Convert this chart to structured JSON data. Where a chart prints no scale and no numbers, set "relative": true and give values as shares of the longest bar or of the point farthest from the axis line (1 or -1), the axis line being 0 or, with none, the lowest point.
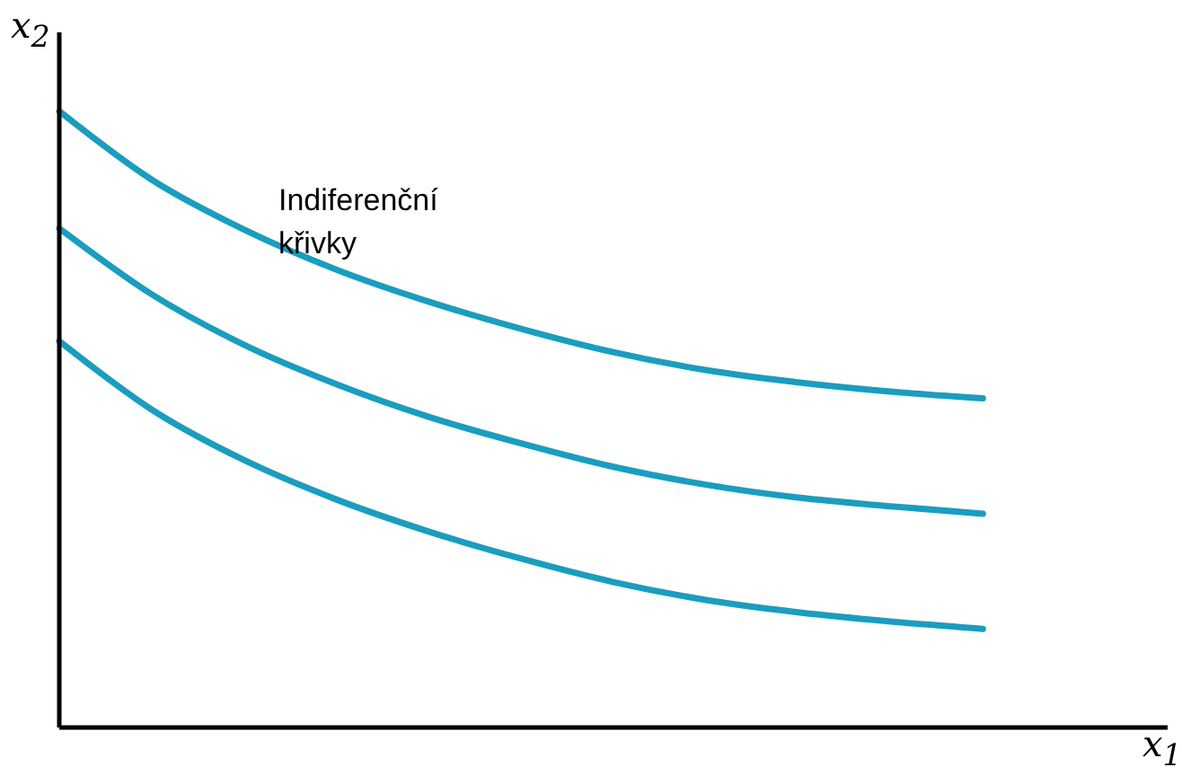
{
  "chart_data": {
    "type": "line",
    "relative": true,
    "xlabel": "x$_{1}$",
    "ylabel": "x$_{2}$",
    "annotations": [
      "Indiferenční křivky"
    ],
    "categories": [
      null,
      null,
      null,
      null,
      null,
      null,
      null,
      null,
      null,
      null,
      null,
      null,
      null
    ],
    "marker": "none",
    "line_style": "solid",
    "grid": false,
    "legend": false,
    "series": [
      {
        "color": "#1a9dbf",
        "values": [
          1,
          0.889,
          0.808,
          0.743,
          0.691,
          0.647,
          0.609,
          0.58,
          0.56,
          0.545,
          0.534,
          null,
          null
        ]
      },
      {
        "color": "#1a9dbf",
        "values": [
          0.81,
          0.703,
          0.621,
          0.557,
          0.504,
          0.461,
          0.423,
          0.394,
          0.373,
          0.359,
          0.347,
          null,
          null
        ]
      },
      {
        "color": "#1a9dbf",
        "values": [
          0.627,
          0.516,
          0.434,
          0.37,
          0.318,
          0.274,
          0.236,
          0.207,
          0.187,
          0.172,
          0.16,
          null,
          null
        ]
      }
    ]
  }
}
